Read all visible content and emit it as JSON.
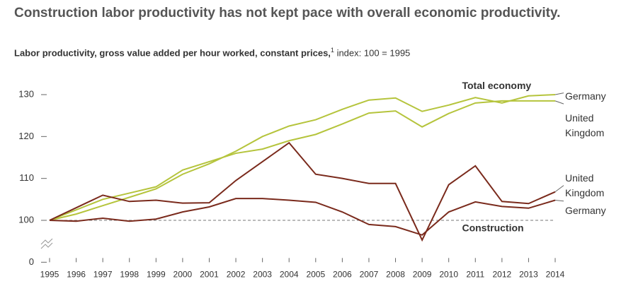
{
  "chart_data": {
    "type": "line",
    "title": "Construction labor productivity has not kept pace with overall economic productivity.",
    "subtitle": {
      "main": "Labor productivity, gross value added per hour worked, constant prices,",
      "footnote_mark": "1",
      "rest": "index: 100 = 1995"
    },
    "x": [
      1995,
      1996,
      1997,
      1998,
      1999,
      2000,
      2001,
      2002,
      2003,
      2004,
      2005,
      2006,
      2007,
      2008,
      2009,
      2010,
      2011,
      2012,
      2013,
      2014
    ],
    "xlim": [
      1995,
      2014
    ],
    "xticks": [
      1995,
      1996,
      1997,
      1998,
      1999,
      2000,
      2001,
      2002,
      2003,
      2004,
      2005,
      2006,
      2007,
      2008,
      2009,
      2010,
      2011,
      2012,
      2013,
      2014
    ],
    "ylim": [
      0,
      130
    ],
    "yticks": [
      0,
      100,
      110,
      120,
      130
    ],
    "axis_break": [
      0,
      90
    ],
    "reference_line": 100,
    "annotations": [
      {
        "text": "Total economy",
        "x": 2010.5,
        "y": 132
      },
      {
        "text": "Construction",
        "x": 2010.5,
        "y": 98
      }
    ],
    "series": [
      {
        "name": "Germany",
        "color": "#b5c43c",
        "values": [
          100,
          101.5,
          103.5,
          105.5,
          107.5,
          111,
          113.5,
          116.5,
          120,
          122.5,
          124,
          126.5,
          128.7,
          129.2,
          126,
          127.5,
          129.3,
          128,
          129.7,
          130
        ]
      },
      {
        "name": "United Kingdom",
        "color": "#b5c43c",
        "values": [
          100,
          102.5,
          105,
          106.5,
          108,
          112,
          114,
          116,
          117,
          119,
          120.5,
          123,
          125.6,
          126.1,
          122.3,
          125.5,
          128,
          128.5,
          128.5,
          128.5
        ]
      },
      {
        "name": "United Kingdom",
        "color": "#7a2a1c",
        "values": [
          100,
          103,
          106,
          104.5,
          104.8,
          104.1,
          104.2,
          109.5,
          114,
          118.5,
          111,
          110,
          108.8,
          108.8,
          95.3,
          108.5,
          113,
          104.5,
          104,
          106.8
        ]
      },
      {
        "name": "Germany",
        "color": "#7a2a1c",
        "values": [
          100,
          99.8,
          100.5,
          99.8,
          100.3,
          102,
          103.2,
          105.2,
          105.2,
          104.8,
          104.3,
          102,
          99,
          98.5,
          96.5,
          102,
          104.4,
          103.3,
          102.9,
          104.8
        ]
      }
    ]
  }
}
